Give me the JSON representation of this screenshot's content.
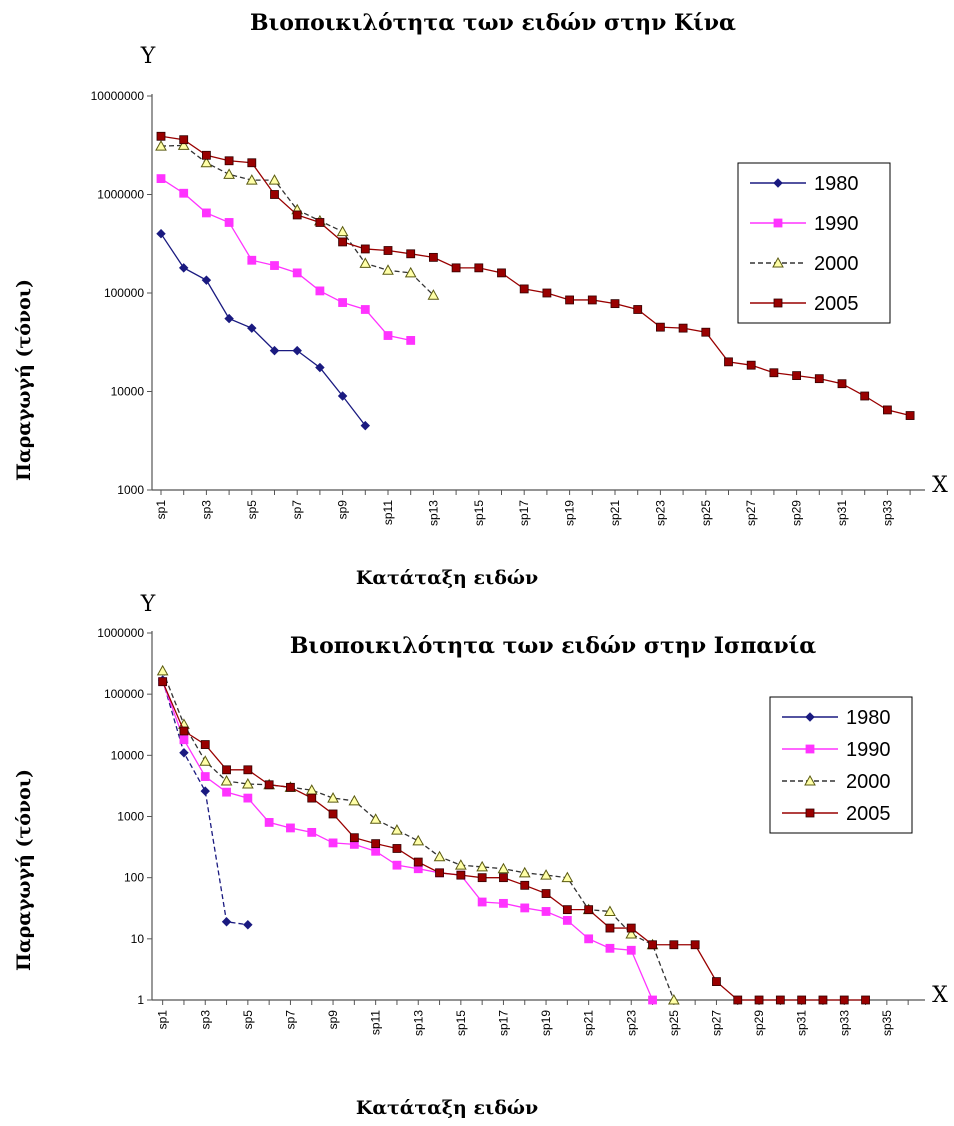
{
  "chart_data": [
    {
      "type": "line",
      "title": "Βιοποικιλότητα των ειδών στην Κίνα",
      "ylabel": "Παραγωγή (τόνοι)",
      "xlabel": "Κατάταξη ειδών",
      "x_axis_letter": "X",
      "y_axis_letter": "Y",
      "y_scale": "log",
      "ylim": [
        1000,
        10000000
      ],
      "y_ticks": [
        "1000",
        "10000",
        "100000",
        "1000000",
        "10000000"
      ],
      "x_ticks": [
        "sp1",
        "sp3",
        "sp5",
        "sp7",
        "sp9",
        "sp11",
        "sp13",
        "sp15",
        "sp17",
        "sp19",
        "sp21",
        "sp23",
        "sp25",
        "sp27",
        "sp29",
        "sp31",
        "sp33"
      ],
      "legend": [
        "1980",
        "1990",
        "2000",
        "2005"
      ],
      "legend_position": "right",
      "series": [
        {
          "name": "1980",
          "color": "#1a1a80",
          "marker": "diamond",
          "values": [
            400000,
            180000,
            135000,
            55000,
            44000,
            26000,
            26000,
            17500,
            9000,
            4500
          ]
        },
        {
          "name": "1990",
          "color": "#ff33ff",
          "marker": "square",
          "values": [
            1450000,
            1030000,
            650000,
            520000,
            215000,
            190000,
            160000,
            105000,
            80000,
            68000,
            37000,
            33000
          ]
        },
        {
          "name": "2000",
          "color": "#7a7a20",
          "marker": "triangle",
          "values": [
            3100000,
            3150000,
            2100000,
            1600000,
            1400000,
            1400000,
            700000,
            540000,
            420000,
            200000,
            170000,
            160000,
            95000
          ]
        },
        {
          "name": "2005",
          "color": "#990000",
          "marker": "square",
          "values": [
            3900000,
            3600000,
            2500000,
            2200000,
            2100000,
            1000000,
            620000,
            520000,
            330000,
            280000,
            270000,
            250000,
            230000,
            180000,
            180000,
            160000,
            110000,
            100000,
            85000,
            85000,
            78000,
            68000,
            45000,
            44000,
            40000,
            20000,
            18500,
            15500,
            14500,
            13500,
            12000,
            9000,
            6500,
            5700
          ]
        }
      ]
    },
    {
      "type": "line",
      "title": "Βιοποικιλότητα των ειδών στην Ισπανία",
      "ylabel": "Παραγωγή (τόνοι)",
      "xlabel": "Κατάταξη ειδών",
      "x_axis_letter": "X",
      "y_axis_letter": "Y",
      "y_scale": "log",
      "ylim": [
        1,
        1000000
      ],
      "y_ticks": [
        "1",
        "10",
        "100",
        "1000",
        "10000",
        "100000",
        "1000000"
      ],
      "x_ticks": [
        "sp1",
        "sp3",
        "sp5",
        "sp7",
        "sp9",
        "sp11",
        "sp13",
        "sp15",
        "sp17",
        "sp19",
        "sp21",
        "sp23",
        "sp25",
        "sp27",
        "sp29",
        "sp31",
        "sp33",
        "sp35"
      ],
      "legend": [
        "1980",
        "1990",
        "2000",
        "2005"
      ],
      "legend_position": "right",
      "series": [
        {
          "name": "1980",
          "color": "#1a1a80",
          "marker": "diamond",
          "values": [
            170000,
            11000,
            2600,
            19,
            17
          ]
        },
        {
          "name": "1990",
          "color": "#ff33ff",
          "marker": "square",
          "values": [
            160000,
            18000,
            4500,
            2500,
            2000,
            800,
            650,
            550,
            370,
            350,
            270,
            160,
            140,
            120,
            110,
            40,
            38,
            32,
            28,
            20,
            10,
            7,
            6.5,
            1
          ]
        },
        {
          "name": "2000",
          "color": "#7a7a20",
          "marker": "triangle",
          "values": [
            240000,
            32000,
            8000,
            3800,
            3400,
            3300,
            3000,
            2700,
            2000,
            1800,
            900,
            600,
            400,
            220,
            160,
            150,
            140,
            120,
            110,
            100,
            30,
            28,
            12,
            8,
            1
          ]
        },
        {
          "name": "2005",
          "color": "#990000",
          "marker": "square",
          "values": [
            160000,
            25000,
            15000,
            5800,
            5800,
            3300,
            3000,
            2000,
            1100,
            450,
            360,
            300,
            180,
            120,
            110,
            100,
            100,
            75,
            55,
            30,
            30,
            15,
            15,
            8,
            8,
            8,
            2,
            1,
            1,
            1,
            1,
            1,
            1,
            1
          ]
        }
      ]
    }
  ]
}
